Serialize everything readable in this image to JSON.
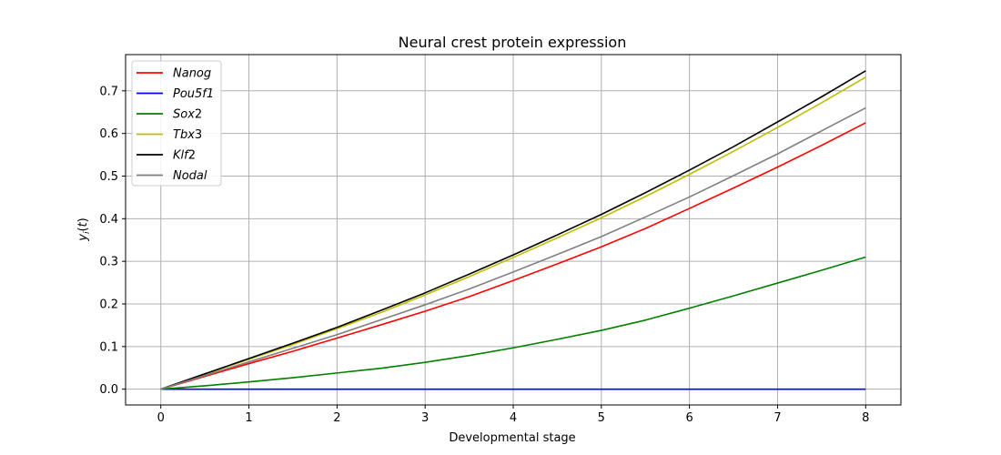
{
  "chart_data": {
    "type": "line",
    "title": "Neural crest protein expression",
    "xlabel": "Developmental stage",
    "ylabel": "y_i(t)",
    "xlim": [
      -0.4,
      8.4
    ],
    "ylim": [
      -0.037,
      0.785
    ],
    "xticks": [
      0,
      1,
      2,
      3,
      4,
      5,
      6,
      7,
      8
    ],
    "yticks": [
      0.0,
      0.1,
      0.2,
      0.3,
      0.4,
      0.5,
      0.6,
      0.7
    ],
    "ytick_labels": [
      "0.0",
      "0.1",
      "0.2",
      "0.3",
      "0.4",
      "0.5",
      "0.6",
      "0.7"
    ],
    "grid": true,
    "legend_position": "top-left",
    "x": [
      0,
      0.5,
      1,
      1.5,
      2,
      2.5,
      3,
      3.5,
      4,
      4.5,
      5,
      5.5,
      6,
      6.5,
      7,
      7.5,
      8
    ],
    "series": [
      {
        "name": "Nanog",
        "color": "#ff0000",
        "values": [
          0.0,
          0.03,
          0.06,
          0.089,
          0.12,
          0.151,
          0.183,
          0.217,
          0.255,
          0.294,
          0.334,
          0.377,
          0.424,
          0.472,
          0.521,
          0.572,
          0.625
        ]
      },
      {
        "name": "Pou5f1",
        "color": "#0000ff",
        "values": [
          0.0,
          0.0,
          0.0,
          0.0,
          0.0,
          0.0,
          0.0,
          0.0,
          0.0,
          0.0,
          0.0,
          0.0,
          0.0,
          0.0,
          0.0,
          0.0,
          0.0
        ]
      },
      {
        "name": "Sox2",
        "color": "#008000",
        "values": [
          0.0,
          0.008,
          0.017,
          0.027,
          0.038,
          0.049,
          0.063,
          0.079,
          0.097,
          0.117,
          0.138,
          0.162,
          0.19,
          0.219,
          0.249,
          0.279,
          0.31
        ]
      },
      {
        "name": "Tbx3",
        "color": "#bfbf00",
        "values": [
          0.0,
          0.035,
          0.07,
          0.105,
          0.142,
          0.18,
          0.221,
          0.264,
          0.309,
          0.355,
          0.402,
          0.452,
          0.504,
          0.558,
          0.614,
          0.672,
          0.732
        ]
      },
      {
        "name": "Klf2",
        "color": "#000000",
        "values": [
          0.0,
          0.036,
          0.072,
          0.108,
          0.145,
          0.185,
          0.226,
          0.27,
          0.315,
          0.362,
          0.41,
          0.461,
          0.514,
          0.569,
          0.627,
          0.686,
          0.747
        ]
      },
      {
        "name": "Nodal",
        "color": "#808080",
        "values": [
          0.0,
          0.032,
          0.064,
          0.096,
          0.128,
          0.163,
          0.198,
          0.235,
          0.275,
          0.316,
          0.358,
          0.404,
          0.451,
          0.501,
          0.552,
          0.606,
          0.66
        ]
      }
    ]
  }
}
